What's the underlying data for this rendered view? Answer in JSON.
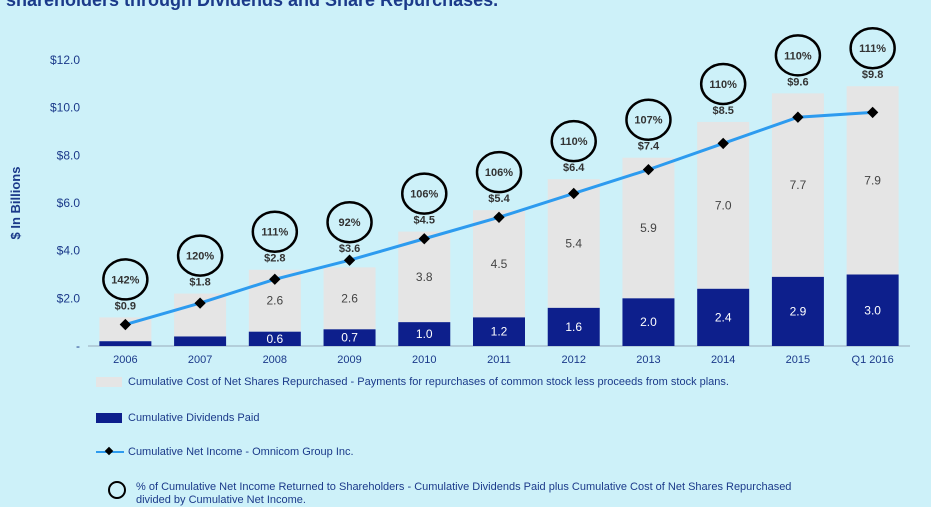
{
  "header": {
    "title": "shareholders through Dividends and Share Repurchases."
  },
  "colors": {
    "repurchase": "#e5e5e5",
    "dividends": "#0d1f8c",
    "income_line": "#2d9bef",
    "marker": "#000000",
    "axis_text": "#1b3a8a"
  },
  "legend": {
    "repurchase": "Cumulative Cost of Net Shares Repurchased - Payments for repurchases of common stock less proceeds from stock plans.",
    "dividends": "Cumulative Dividends Paid",
    "income": "Cumulative Net Income - Omnicom Group Inc.",
    "percent_line1": "% of Cumulative Net Income Returned to Shareholders - Cumulative Dividends Paid plus Cumulative Cost of Net Shares Repurchased",
    "percent_line2": "divided by Cumulative Net Income."
  },
  "chart_data": {
    "type": "bar",
    "ylabel": "$ In Billions",
    "ylim": [
      0,
      12
    ],
    "yticks": [
      "-",
      "$2.0",
      "$4.0",
      "$6.0",
      "$8.0",
      "$10.0",
      "$12.0"
    ],
    "categories": [
      "2006",
      "2007",
      "2008",
      "2009",
      "2010",
      "2011",
      "2012",
      "2013",
      "2014",
      "2015",
      "Q1 2016"
    ],
    "series": [
      {
        "name": "Cumulative Dividends Paid",
        "values": [
          0.2,
          0.4,
          0.6,
          0.7,
          1.0,
          1.2,
          1.6,
          2.0,
          2.4,
          2.9,
          3.0
        ],
        "labels": [
          "",
          "",
          "0.6",
          "0.7",
          "1.0",
          "1.2",
          "1.6",
          "2.0",
          "2.4",
          "2.9",
          "3.0"
        ]
      },
      {
        "name": "Cumulative Cost of Net Shares Repurchased",
        "values": [
          1.0,
          1.8,
          2.6,
          2.6,
          3.8,
          4.5,
          5.4,
          5.9,
          7.0,
          7.7,
          7.9
        ],
        "labels": [
          "",
          "",
          "2.6",
          "2.6",
          "3.8",
          "4.5",
          "5.4",
          "5.9",
          "7.0",
          "7.7",
          "7.9"
        ]
      },
      {
        "name": "Cumulative Net Income - Omnicom Group Inc.",
        "type": "line",
        "values": [
          0.9,
          1.8,
          2.8,
          3.6,
          4.5,
          5.4,
          6.4,
          7.4,
          8.5,
          9.6,
          9.8
        ],
        "labels": [
          "$0.9",
          "$1.8",
          "$2.8",
          "$3.6",
          "$4.5",
          "$5.4",
          "$6.4",
          "$7.4",
          "$8.5",
          "$9.6",
          "$9.8"
        ]
      }
    ],
    "percent_returned": [
      "142%",
      "120%",
      "111%",
      "92%",
      "106%",
      "106%",
      "110%",
      "107%",
      "110%",
      "110%",
      "111%"
    ],
    "grid": false
  }
}
